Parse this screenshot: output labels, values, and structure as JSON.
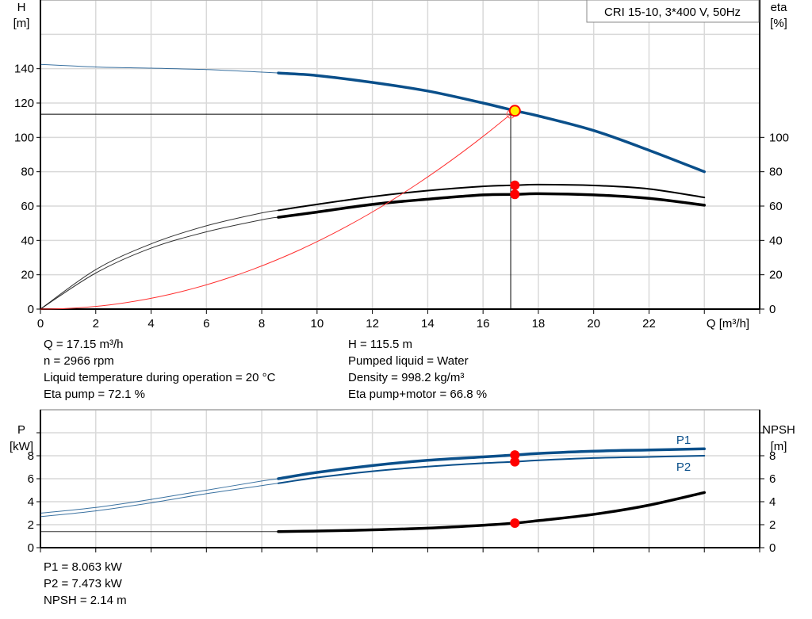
{
  "chart_data": [
    {
      "type": "line",
      "legend_box": "CRI 15-10, 3*400 V, 50Hz",
      "legend_placement": "top-right",
      "xlabel": "Q [m³/h]",
      "ylabel_left": [
        "H",
        "[m]"
      ],
      "ylabel_right": [
        "eta",
        "[%]"
      ],
      "xlim": [
        0,
        26
      ],
      "ylim_left": [
        0,
        180
      ],
      "ylim_right": [
        0,
        180
      ],
      "grid": true,
      "x_ticks": [
        0,
        2,
        4,
        6,
        8,
        10,
        12,
        14,
        16,
        18,
        20,
        22
      ],
      "y_ticks_left": [
        0,
        20,
        40,
        60,
        80,
        100,
        120,
        140
      ],
      "y_ticks_right": [
        0,
        20,
        40,
        60,
        80,
        100
      ],
      "x": [
        0,
        2,
        4,
        6,
        8,
        8.6,
        10,
        12,
        14,
        16,
        17.15,
        18,
        20,
        22,
        24
      ],
      "series": [
        {
          "key": "H",
          "axis": "left",
          "color": "#0a4f8a",
          "values": [
            142.5,
            141,
            140.3,
            139.5,
            138,
            137.5,
            136,
            132,
            127,
            120,
            115.5,
            112.5,
            104,
            92.5,
            80
          ]
        },
        {
          "key": "eta_pump",
          "axis": "right",
          "color": "#000000",
          "values": [
            0,
            23,
            38,
            48.5,
            56,
            57.5,
            61,
            65.5,
            69,
            71.5,
            72.1,
            72.5,
            72,
            70,
            65
          ]
        },
        {
          "key": "eta_pump_motor",
          "axis": "right",
          "color": "#000000",
          "values": [
            0,
            21,
            35.5,
            45,
            52,
            53.5,
            56.5,
            61,
            64,
            66.5,
            66.8,
            67.2,
            66.5,
            64.5,
            60.5
          ]
        }
      ],
      "system_curve": {
        "color": "#ff3030",
        "through": [
          17.0,
          113.5
        ]
      },
      "duty_point": {
        "Q": 17.15,
        "H": 115.5,
        "color": "#ffee00"
      },
      "required_point": {
        "Q": 17.0,
        "H": 113.5
      },
      "operating_range_start": 8.6,
      "operating_points_eta": [
        72.1,
        66.8
      ]
    },
    {
      "type": "line",
      "ylabel_left": [
        "P",
        "[kW]"
      ],
      "ylabel_right": [
        "NPSH",
        "[m]"
      ],
      "xlim": [
        0,
        26
      ],
      "ylim_left": [
        0,
        12
      ],
      "ylim_right": [
        0,
        12
      ],
      "grid": true,
      "y_ticks_left": [
        0,
        2,
        4,
        6,
        8,
        10
      ],
      "y_tick_labels_left": [
        "0",
        "2",
        "4",
        "6",
        "8"
      ],
      "y_tick_labels_right": [
        "0",
        "2",
        "4",
        "6",
        "8"
      ],
      "x": [
        0,
        2,
        4,
        6,
        8,
        8.6,
        10,
        12,
        14,
        16,
        17.15,
        18,
        20,
        22,
        24
      ],
      "series": [
        {
          "name": "P1",
          "axis": "left",
          "color": "#0a4f8a",
          "values": [
            3.0,
            3.5,
            4.2,
            5.0,
            5.8,
            6.0,
            6.55,
            7.15,
            7.6,
            7.9,
            8.063,
            8.2,
            8.4,
            8.5,
            8.6
          ]
        },
        {
          "name": "P2",
          "axis": "left",
          "color": "#0a4f8a",
          "values": [
            2.7,
            3.2,
            3.9,
            4.7,
            5.4,
            5.6,
            6.1,
            6.65,
            7.05,
            7.35,
            7.473,
            7.6,
            7.8,
            7.9,
            8.0
          ]
        },
        {
          "key": "NPSH",
          "axis": "right",
          "color": "#000000",
          "values": [
            1.4,
            1.4,
            1.4,
            1.4,
            1.4,
            1.4,
            1.45,
            1.55,
            1.7,
            1.95,
            2.14,
            2.35,
            2.9,
            3.7,
            4.8
          ]
        }
      ],
      "operating_range_start": 8.6,
      "operating_Q": 17.15,
      "operating_points": [
        8.063,
        7.473,
        2.14
      ]
    }
  ],
  "info_top_left": [
    "Q = 17.15 m³/h",
    "n = 2966 rpm",
    "Liquid temperature during operation = 20 °C",
    "Eta pump = 72.1 %"
  ],
  "info_top_right": [
    "H = 115.5 m",
    "Pumped liquid = Water",
    "Density = 998.2 kg/m³",
    "Eta pump+motor = 66.8 %"
  ],
  "info_bottom": [
    "P1 = 8.063 kW",
    "P2 = 7.473 kW",
    "NPSH = 2.14 m"
  ]
}
